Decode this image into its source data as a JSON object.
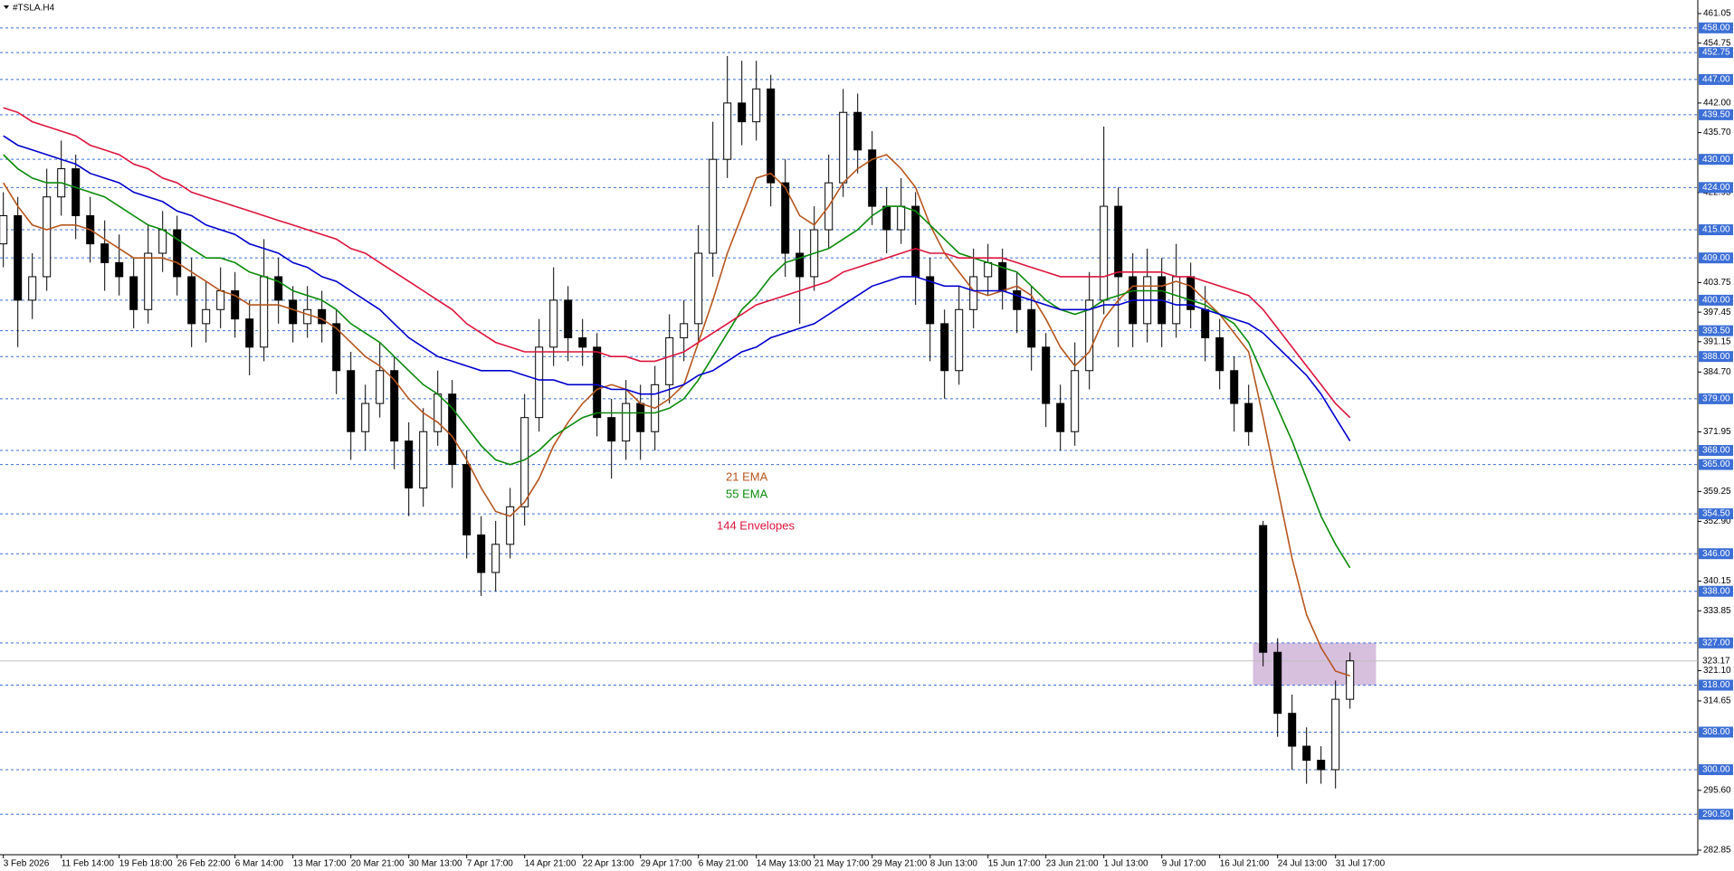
{
  "chart_data": {
    "type": "candlestick",
    "title": "#TSLA.H4",
    "categories": [
      "3 Feb 2026",
      null,
      null,
      null,
      "11 Feb 14:00",
      null,
      null,
      null,
      "19 Feb 18:00",
      null,
      null,
      null,
      "26 Feb 22:00",
      null,
      null,
      null,
      "6 Mar 14:00",
      null,
      null,
      null,
      "13 Mar 17:00",
      null,
      null,
      null,
      "20 Mar 21:00",
      null,
      null,
      null,
      "30 Mar 13:00",
      null,
      null,
      null,
      "7 Apr 17:00",
      null,
      null,
      null,
      "14 Apr 21:00",
      null,
      null,
      null,
      "22 Apr 13:00",
      null,
      null,
      null,
      "29 Apr 17:00",
      null,
      null,
      null,
      "6 May 21:00",
      null,
      null,
      null,
      "14 May 13:00",
      null,
      null,
      null,
      "21 May 17:00",
      null,
      null,
      null,
      "29 May 21:00",
      null,
      null,
      null,
      "8 Jun 13:00",
      null,
      null,
      null,
      "15 Jun 17:00",
      null,
      null,
      null,
      "23 Jun 21:00",
      null,
      null,
      null,
      "1 Jul 13:00",
      null,
      null,
      null,
      "9 Jul 17:00",
      null,
      null,
      null,
      "16 Jul 21:00",
      null,
      null,
      null,
      "24 Jul 13:00",
      null,
      null,
      null,
      "31 Jul 17:00",
      null
    ],
    "open": [
      412,
      418,
      400,
      405,
      422,
      428,
      418,
      412,
      408,
      405,
      398,
      410,
      415,
      405,
      395,
      398,
      402,
      396,
      390,
      405,
      400,
      395,
      398,
      395,
      385,
      372,
      378,
      385,
      370,
      360,
      372,
      380,
      365,
      350,
      342,
      348,
      356,
      375,
      390,
      400,
      392,
      390,
      375,
      370,
      378,
      372,
      382,
      392,
      395,
      410,
      430,
      442,
      438,
      445,
      425,
      410,
      405,
      415,
      425,
      440,
      432,
      420,
      415,
      420,
      405,
      395,
      385,
      398,
      405,
      408,
      402,
      398,
      390,
      378,
      372,
      385,
      400,
      420,
      405,
      395,
      405,
      395,
      405,
      398,
      392,
      385,
      378,
      352,
      325,
      312,
      305,
      302,
      300,
      315
    ],
    "high": [
      423,
      422,
      410,
      428,
      434,
      431,
      422,
      417,
      414,
      409,
      416,
      419,
      418,
      409,
      404,
      407,
      406,
      400,
      413,
      409,
      403,
      403,
      402,
      398,
      389,
      382,
      391,
      388,
      374,
      377,
      385,
      383,
      368,
      354,
      353,
      360,
      380,
      396,
      407,
      403,
      396,
      393,
      379,
      383,
      382,
      386,
      397,
      400,
      416,
      438,
      452,
      451,
      451,
      448,
      430,
      415,
      420,
      431,
      445,
      444,
      436,
      424,
      426,
      423,
      409,
      398,
      403,
      411,
      412,
      411,
      406,
      403,
      393,
      382,
      391,
      406,
      437,
      424,
      410,
      411,
      409,
      412,
      408,
      403,
      396,
      388,
      382,
      353,
      328,
      316,
      309,
      305,
      319,
      325
    ],
    "low": [
      407,
      390,
      396,
      402,
      418,
      413,
      408,
      402,
      401,
      394,
      395,
      406,
      401,
      390,
      391,
      394,
      392,
      384,
      387,
      395,
      391,
      392,
      391,
      380,
      366,
      368,
      375,
      364,
      354,
      356,
      369,
      360,
      345,
      337,
      338,
      345,
      352,
      372,
      386,
      387,
      386,
      371,
      362,
      366,
      366,
      368,
      378,
      387,
      391,
      405,
      426,
      433,
      434,
      420,
      405,
      395,
      402,
      411,
      422,
      427,
      416,
      410,
      412,
      399,
      387,
      379,
      382,
      394,
      401,
      398,
      393,
      385,
      373,
      368,
      369,
      381,
      397,
      390,
      390,
      391,
      390,
      392,
      394,
      387,
      381,
      372,
      369,
      322,
      307,
      300,
      297,
      297,
      296,
      313
    ],
    "close": [
      418,
      400,
      405,
      422,
      428,
      418,
      412,
      408,
      405,
      398,
      410,
      415,
      405,
      395,
      398,
      402,
      396,
      390,
      405,
      400,
      395,
      398,
      395,
      385,
      372,
      378,
      385,
      370,
      360,
      372,
      380,
      365,
      350,
      342,
      348,
      356,
      375,
      390,
      400,
      392,
      390,
      375,
      370,
      378,
      372,
      382,
      392,
      395,
      410,
      430,
      442,
      438,
      445,
      425,
      410,
      405,
      415,
      425,
      440,
      432,
      420,
      415,
      420,
      405,
      395,
      385,
      398,
      405,
      408,
      402,
      398,
      390,
      378,
      372,
      385,
      400,
      420,
      405,
      395,
      405,
      395,
      405,
      398,
      392,
      385,
      378,
      372,
      325,
      312,
      305,
      302,
      300,
      315,
      323.17
    ],
    "series": [
      {
        "name": "21 EMA",
        "color": "#b5561e",
        "values": [
          425,
          420,
          416,
          415,
          416,
          416,
          415,
          413,
          411,
          409,
          409,
          409,
          408,
          406,
          404,
          402,
          401,
          399,
          399,
          399,
          398,
          397,
          396,
          394,
          391,
          388,
          386,
          383,
          379,
          376,
          374,
          371,
          366,
          360,
          355,
          354,
          357,
          362,
          369,
          374,
          378,
          381,
          382,
          381,
          378,
          377,
          379,
          382,
          391,
          400,
          410,
          418,
          426,
          427,
          424,
          418,
          416,
          420,
          425,
          428,
          430,
          431,
          428,
          424,
          416,
          410,
          406,
          402,
          401,
          402,
          403,
          401,
          396,
          390,
          386,
          389,
          396,
          400,
          403,
          403,
          403,
          404,
          403,
          400,
          397,
          393,
          389,
          375,
          360,
          345,
          333,
          326,
          321,
          320
        ]
      },
      {
        "name": "55 EMA",
        "color": "#0a8a0a",
        "values": [
          431,
          428,
          426,
          425,
          425,
          424,
          423,
          422,
          420,
          418,
          416,
          415,
          413,
          411,
          409,
          409,
          408,
          406,
          405,
          404,
          402,
          401,
          400,
          398,
          395,
          393,
          391,
          388,
          385,
          382,
          380,
          377,
          373,
          369,
          366,
          365,
          366,
          368,
          371,
          373,
          375,
          376,
          376,
          376,
          376,
          376,
          377,
          379,
          383,
          388,
          393,
          398,
          401,
          405,
          408,
          409,
          410,
          411,
          413,
          415,
          418,
          420,
          420,
          419,
          416,
          413,
          410,
          409,
          408,
          407,
          406,
          403,
          400,
          398,
          397,
          398,
          400,
          401,
          402,
          402,
          402,
          401,
          400,
          399,
          397,
          395,
          391,
          384,
          377,
          370,
          362,
          354,
          348,
          343
        ]
      },
      {
        "name": "144 Envelopes",
        "color": "#dc143c",
        "values": [
          441,
          440,
          438,
          437,
          436,
          435,
          433,
          432,
          431,
          429,
          428,
          426,
          425,
          423,
          422,
          421,
          420,
          419,
          418,
          417,
          416,
          415,
          414,
          413,
          411,
          410,
          408,
          406,
          404,
          402,
          400,
          398,
          395,
          393,
          391,
          390,
          389,
          389,
          389,
          389,
          389,
          389,
          388,
          388,
          387,
          387,
          388,
          389,
          391,
          393,
          395,
          397,
          399,
          400,
          401,
          402,
          403,
          404,
          406,
          407,
          408,
          409,
          410,
          411,
          410,
          410,
          409,
          409,
          409,
          409,
          408,
          407,
          406,
          405,
          405,
          405,
          405,
          406,
          406,
          406,
          406,
          405,
          405,
          404,
          403,
          402,
          401,
          398,
          394,
          390,
          386,
          382,
          378,
          375
        ],
        "lower_color": "#0000cd",
        "lower": [
          435,
          433,
          432,
          431,
          430,
          429,
          427,
          426,
          425,
          423,
          422,
          421,
          419,
          418,
          416,
          415,
          414,
          412,
          411,
          410,
          408,
          407,
          405,
          404,
          402,
          400,
          398,
          395,
          392,
          390,
          388,
          387,
          386,
          385,
          385,
          385,
          384,
          383,
          383,
          382,
          382,
          382,
          381,
          381,
          380,
          380,
          381,
          382,
          384,
          385,
          387,
          389,
          390,
          392,
          393,
          394,
          395,
          397,
          399,
          401,
          403,
          404,
          405,
          405,
          404,
          403,
          403,
          402,
          402,
          402,
          401,
          400,
          399,
          398,
          398,
          398,
          399,
          399,
          400,
          400,
          400,
          399,
          399,
          398,
          397,
          396,
          395,
          393,
          390,
          387,
          384,
          380,
          375,
          370
        ]
      }
    ],
    "ylim": [
      282.85,
      461.05
    ],
    "yticks": [
      461.05,
      454.75,
      {
        "value": 442,
        "label": "442.00"
      },
      {
        "value": 435.7,
        "label": "435.70"
      },
      422.95,
      403.75,
      397.45,
      391.15,
      {
        "value": 384.7,
        "label": "384.70"
      },
      371.95,
      359.25,
      {
        "value": 352.9,
        "label": "352.90"
      },
      340.15,
      333.85,
      {
        "value": 321.1,
        "label": "321.10"
      },
      314.65,
      {
        "value": 295.6,
        "label": "295.60"
      },
      282.85
    ],
    "levels": [
      {
        "value": 458,
        "label": "458.00"
      },
      {
        "value": 452.75,
        "label": "452.75"
      },
      {
        "value": 447,
        "label": "447.00"
      },
      {
        "value": 439.5,
        "label": "439.50"
      },
      {
        "value": 430,
        "label": "430.00"
      },
      {
        "value": 424,
        "label": "424.00"
      },
      {
        "value": 415,
        "label": "415.00"
      },
      {
        "value": 409,
        "label": "409.00"
      },
      {
        "value": 400,
        "label": "400.00"
      },
      {
        "value": 393.5,
        "label": "393.50"
      },
      {
        "value": 388,
        "label": "388.00"
      },
      {
        "value": 379,
        "label": "379.00"
      },
      {
        "value": 368,
        "label": "368.00"
      },
      {
        "value": 365,
        "label": "365.00"
      },
      {
        "value": 354.5,
        "label": "354.50"
      },
      {
        "value": 346,
        "label": "346.00"
      },
      {
        "value": 338,
        "label": "338.00"
      },
      {
        "value": 327,
        "label": "327.00"
      },
      {
        "value": 318,
        "label": "318.00"
      },
      {
        "value": 308,
        "label": "308.00"
      },
      {
        "value": 300,
        "label": "300.00"
      },
      {
        "value": 290.5,
        "label": "290.50"
      }
    ],
    "level_color": "#3c6fd6",
    "last_price": 323.17,
    "zone": [
      318,
      327
    ],
    "zone_color": "#c9a9d3",
    "grid": false
  }
}
